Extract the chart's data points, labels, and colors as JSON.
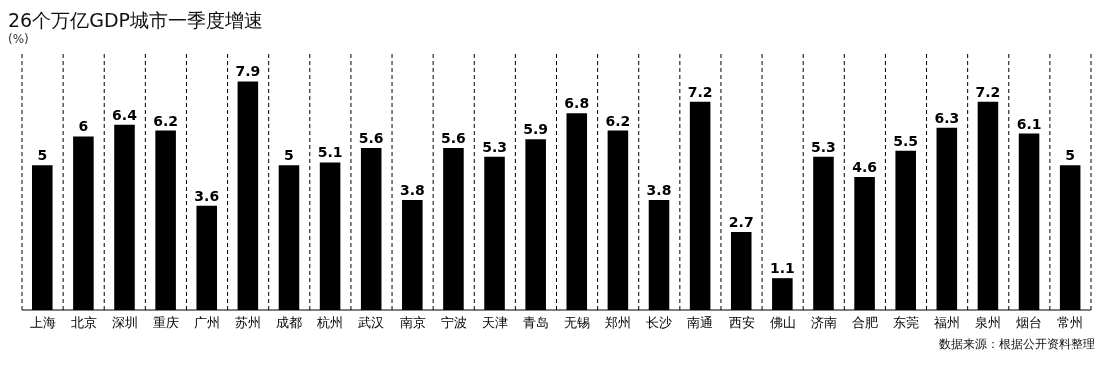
{
  "chart_data": {
    "type": "bar",
    "title": "26个万亿GDP城市一季度增速",
    "ylabel": "(%)",
    "categories": [
      "上海",
      "北京",
      "深圳",
      "重庆",
      "广州",
      "苏州",
      "成都",
      "杭州",
      "武汉",
      "南京",
      "宁波",
      "天津",
      "青岛",
      "无锡",
      "郑州",
      "长沙",
      "南通",
      "西安",
      "佛山",
      "济南",
      "合肥",
      "东莞",
      "福州",
      "泉州",
      "烟台",
      "常州"
    ],
    "values": [
      5,
      6,
      6.4,
      6.2,
      3.6,
      7.9,
      5,
      5.1,
      5.6,
      3.8,
      5.6,
      5.3,
      5.9,
      6.8,
      6.2,
      3.8,
      7.2,
      2.7,
      1.1,
      5.3,
      4.6,
      5.5,
      6.3,
      7.2,
      6.1,
      5
    ],
    "color": "#000000",
    "data_labels": true,
    "grid": "x",
    "annotations": [
      "数据来源：根据公开资料整理"
    ]
  }
}
